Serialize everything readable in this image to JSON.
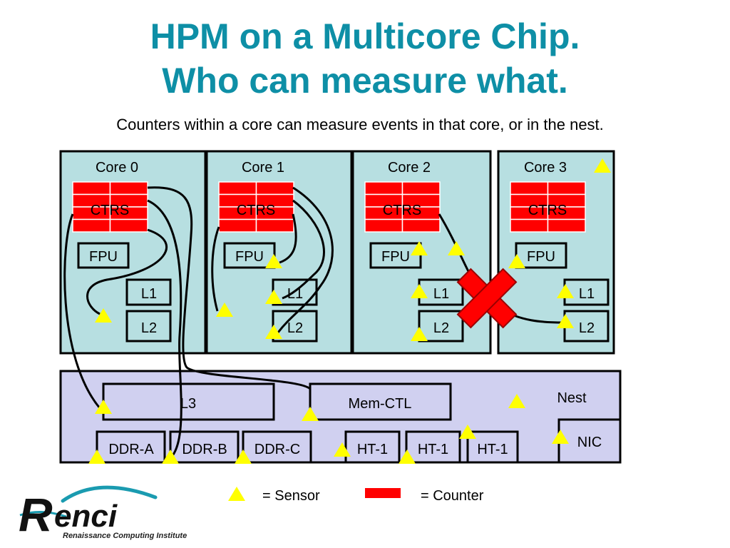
{
  "title": {
    "line1": "HPM on a Multicore Chip.",
    "line2": "Who can measure what."
  },
  "subtitle": "Counters within a core can measure events in that core, or in the nest.",
  "colors": {
    "title": "#0e8fa6",
    "core_fill": "#b7dfe1",
    "nest_fill": "#d0d0f0",
    "counter": "#ff0000",
    "sensor": "#ffff00",
    "blocked": "#ff0000"
  },
  "cores": [
    {
      "label": "Core 0",
      "ctrs": "CTRS",
      "fpu": "FPU",
      "l1": "L1",
      "l2": "L2"
    },
    {
      "label": "Core 1",
      "ctrs": "CTRS",
      "fpu": "FPU",
      "l1": "L1",
      "l2": "L2"
    },
    {
      "label": "Core 2",
      "ctrs": "CTRS",
      "fpu": "FPU",
      "l1": "L1",
      "l2": "L2"
    },
    {
      "label": "Core 3",
      "ctrs": "CTRS",
      "fpu": "FPU",
      "l1": "L1",
      "l2": "L2"
    }
  ],
  "nest": {
    "label": "Nest",
    "l3": "L3",
    "memctl": "Mem-CTL",
    "nic": "NIC",
    "ddr": [
      "DDR-A",
      "DDR-B",
      "DDR-C"
    ],
    "ht": [
      "HT-1",
      "HT-1",
      "HT-1"
    ]
  },
  "legend": {
    "sensor": "= Sensor",
    "counter": "= Counter"
  },
  "icons": {
    "sensor": "yellow-triangle",
    "counter": "red-rectangle",
    "blocked": "red-x"
  },
  "logo": {
    "name": "Renci",
    "tagline": "Renaissance Computing Institute"
  }
}
